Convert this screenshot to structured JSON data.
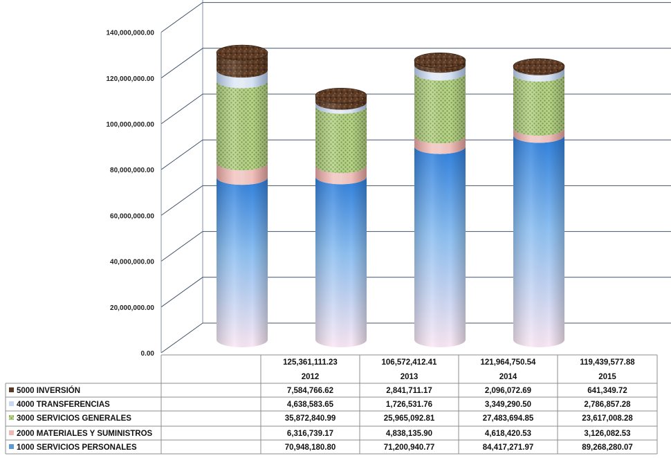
{
  "chart_data": {
    "type": "bar",
    "stacked": true,
    "style": "3d-cylinder",
    "categories": [
      "2012",
      "2013",
      "2014",
      "2015"
    ],
    "totals": [
      "125,361,111.23",
      "106,572,412.41",
      "121,964,750.54",
      "119,439,577.88"
    ],
    "total_values": [
      125361111.23,
      106572412.41,
      121964750.54,
      119439577.88
    ],
    "y_ticks": [
      "0.00",
      "20,000,000.00",
      "40,000,000.00",
      "60,000,000.00",
      "80,000,000.00",
      "100,000,000.00",
      "120,000,000.00",
      "140,000,000.00"
    ],
    "ylim": [
      0,
      140000000
    ],
    "grid": true,
    "legend": "table-below",
    "series": [
      {
        "name": "1000 SERVICIOS PERSONALES",
        "values": [
          70948180.8,
          71200940.77,
          84417271.97,
          89268280.07
        ],
        "labels": [
          "70,948,180.80",
          "71,200,940.77",
          "84,417,271.97",
          "89,268,280.07"
        ],
        "color": "#5b9bd5"
      },
      {
        "name": "2000 MATERIALES Y SUMINISTROS",
        "values": [
          6316739.17,
          4838135.9,
          4618420.53,
          3126082.53
        ],
        "labels": [
          "6,316,739.17",
          "4,838,135.90",
          "4,618,420.53",
          "3,126,082.53"
        ],
        "color": "#f0b7b3"
      },
      {
        "name": "3000 SERVICIOS GENERALES",
        "values": [
          35872840.99,
          25965092.81,
          27483694.85,
          23617008.28
        ],
        "labels": [
          "35,872,840.99",
          "25,965,092.81",
          "27,483,694.85",
          "23,617,008.28"
        ],
        "color": "#a9c97a"
      },
      {
        "name": "4000 TRANSFERENCIAS",
        "values": [
          4638583.65,
          1726531.76,
          3349290.5,
          2786857.28
        ],
        "labels": [
          "4,638,583.65",
          "1,726,531.76",
          "3,349,290.50",
          "2,786,857.28"
        ],
        "color": "#c6d9f0"
      },
      {
        "name": "5000 INVERSIÓN",
        "values": [
          7584766.62,
          2841711.17,
          2096072.69,
          641349.72
        ],
        "labels": [
          "7,584,766.62",
          "2,841,711.17",
          "2,096,072.69",
          "641,349.72"
        ],
        "color": "#5a3a24"
      }
    ]
  }
}
